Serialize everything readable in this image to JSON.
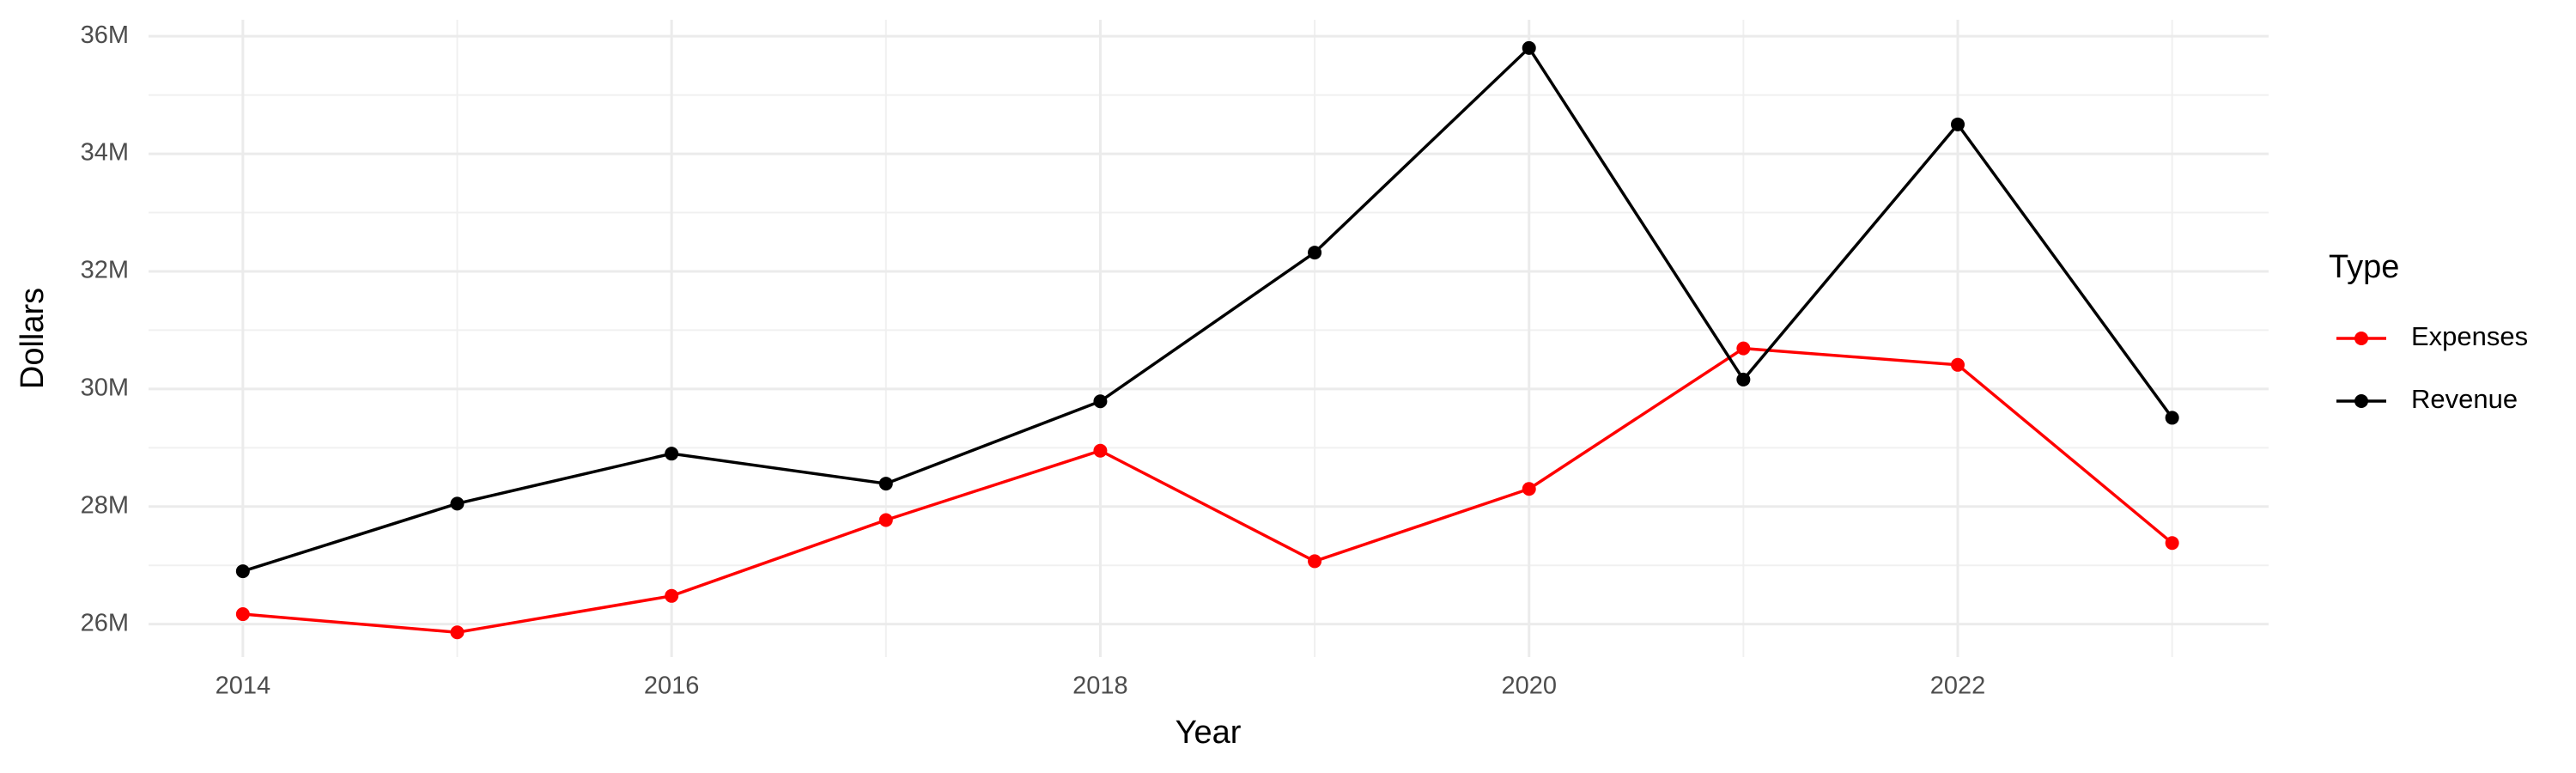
{
  "chart_data": {
    "type": "line",
    "x_label": "Year",
    "y_label": "Dollars",
    "legend_title": "Type",
    "x": [
      2014,
      2015,
      2016,
      2017,
      2018,
      2019,
      2020,
      2021,
      2022,
      2023
    ],
    "series": [
      {
        "name": "Expenses",
        "color": "#ff0000",
        "values": [
          26170000,
          25860000,
          26480000,
          27770000,
          28950000,
          27070000,
          28300000,
          30690000,
          30410000,
          27380000
        ]
      },
      {
        "name": "Revenue",
        "color": "#000000",
        "values": [
          26900000,
          28050000,
          28900000,
          28390000,
          29790000,
          32320000,
          35800000,
          30160000,
          34500000,
          29510000
        ]
      }
    ],
    "xlim": [
      2013.56,
      2023.45
    ],
    "xticks": [
      2014,
      2016,
      2018,
      2020,
      2022
    ],
    "ylim": [
      25440000,
      36280000
    ],
    "yticks": [
      {
        "value": 26000000,
        "label": "26M"
      },
      {
        "value": 28000000,
        "label": "28M"
      },
      {
        "value": 30000000,
        "label": "30M"
      },
      {
        "value": 32000000,
        "label": "32M"
      },
      {
        "value": 34000000,
        "label": "34M"
      },
      {
        "value": 36000000,
        "label": "36M"
      }
    ],
    "grid": true,
    "legend": "right"
  }
}
